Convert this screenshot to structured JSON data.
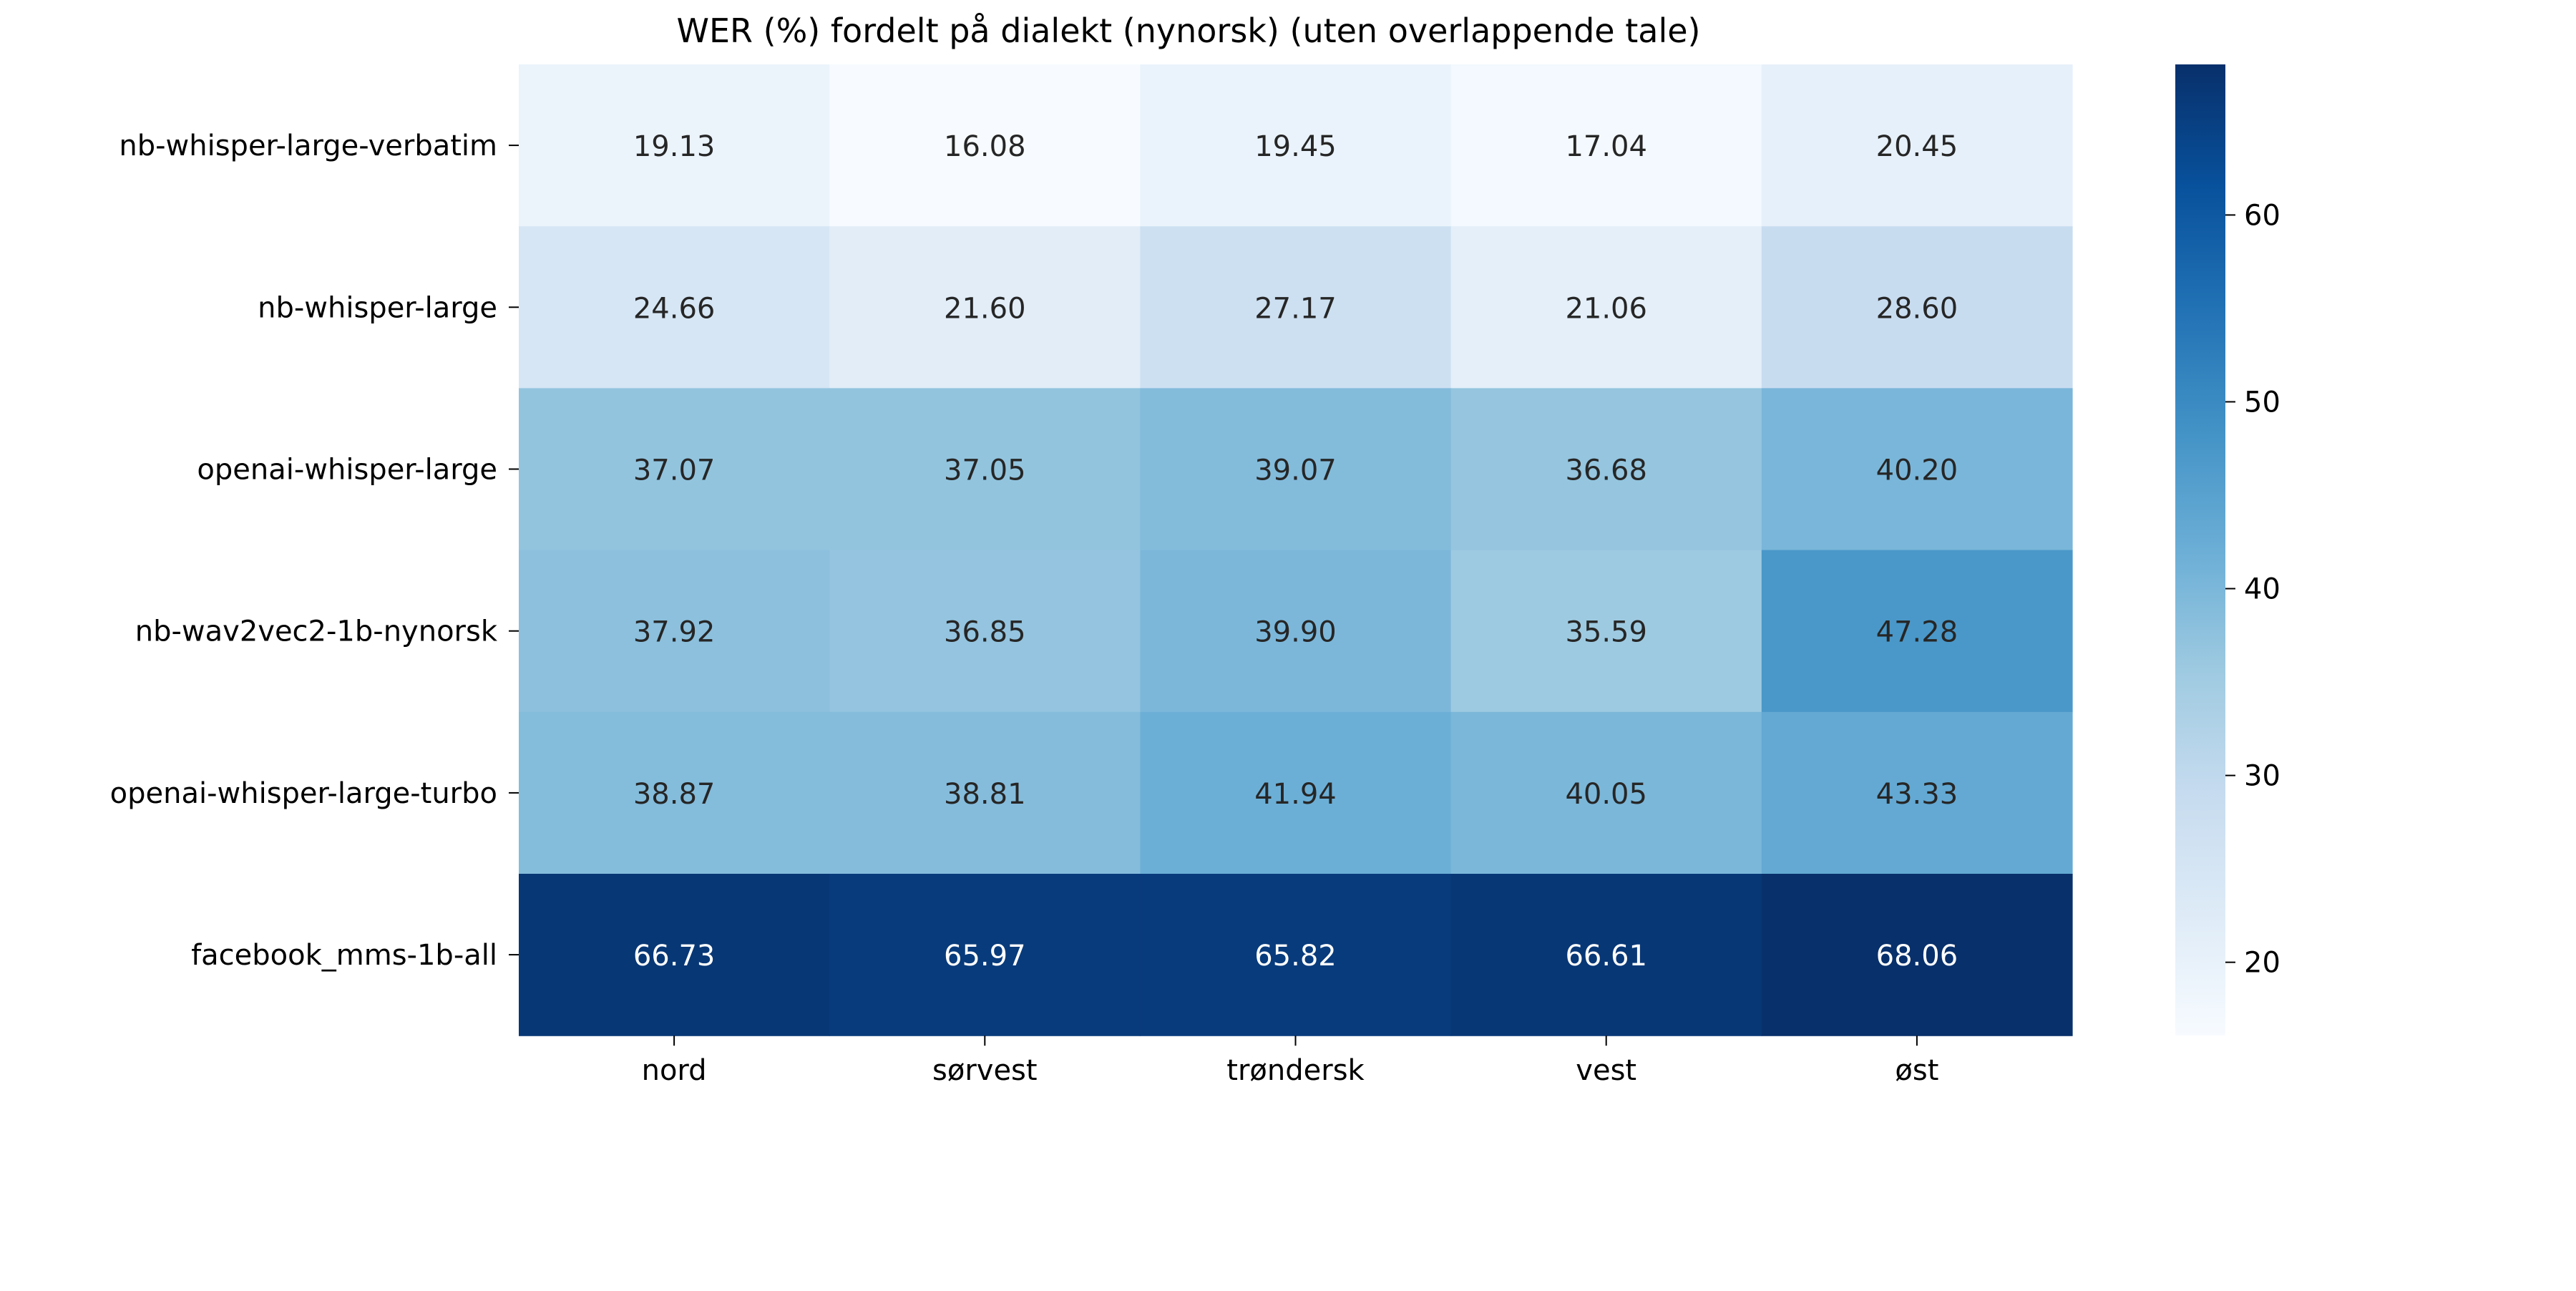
{
  "chart_data": {
    "type": "heatmap",
    "title": "WER (%) fordelt på dialekt (nynorsk) (uten overlappende tale)",
    "xlabel": "",
    "ylabel": "",
    "colormap": "Blues",
    "rows": [
      "nb-whisper-large-verbatim",
      "nb-whisper-large",
      "openai-whisper-large",
      "nb-wav2vec2-1b-nynorsk",
      "openai-whisper-large-turbo",
      "facebook_mms-1b-all"
    ],
    "columns": [
      "nord",
      "sørvest",
      "trøndersk",
      "vest",
      "øst"
    ],
    "values": [
      [
        19.13,
        16.08,
        19.45,
        17.04,
        20.45
      ],
      [
        24.66,
        21.6,
        27.17,
        21.06,
        28.6
      ],
      [
        37.07,
        37.05,
        39.07,
        36.68,
        40.2
      ],
      [
        37.92,
        36.85,
        39.9,
        35.59,
        47.28
      ],
      [
        38.87,
        38.81,
        41.94,
        40.05,
        43.33
      ],
      [
        66.73,
        65.97,
        65.82,
        66.61,
        68.06
      ]
    ],
    "colorbar": {
      "range": [
        16.08,
        68.06
      ],
      "ticks": [
        20,
        30,
        40,
        50,
        60
      ]
    },
    "grid": false,
    "legend": "colorbar-right"
  }
}
